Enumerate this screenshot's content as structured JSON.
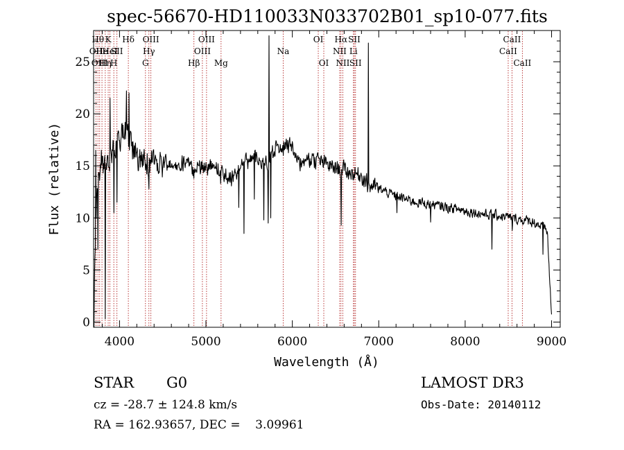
{
  "chart_data": {
    "type": "line",
    "title": "spec-56670-HD110033N033702B01_sp10-077.fits",
    "xlabel": "Wavelength (Å)",
    "ylabel": "Flux (relative)",
    "xlim": [
      3700,
      9100
    ],
    "ylim": [
      -0.5,
      28
    ],
    "x_ticks": [
      4000,
      5000,
      6000,
      7000,
      8000,
      9000
    ],
    "y_ticks": [
      0,
      5,
      10,
      15,
      20,
      25
    ],
    "grid": false,
    "colors": {
      "spectrum": "#000000",
      "line_markers": "#b22222"
    },
    "continuum": [
      [
        3700,
        0.5
      ],
      [
        3720,
        8
      ],
      [
        3750,
        14
      ],
      [
        3800,
        14.5
      ],
      [
        3850,
        15
      ],
      [
        3880,
        16
      ],
      [
        3950,
        16.5
      ],
      [
        4000,
        17
      ],
      [
        4050,
        18.5
      ],
      [
        4100,
        17.5
      ],
      [
        4150,
        16.5
      ],
      [
        4200,
        16
      ],
      [
        4300,
        15.5
      ],
      [
        4400,
        15.3
      ],
      [
        4500,
        15.2
      ],
      [
        4600,
        15.3
      ],
      [
        4700,
        15.3
      ],
      [
        4800,
        15.2
      ],
      [
        4860,
        14.3
      ],
      [
        4900,
        15
      ],
      [
        5000,
        15
      ],
      [
        5100,
        15
      ],
      [
        5200,
        14.2
      ],
      [
        5300,
        13.8
      ],
      [
        5400,
        14.8
      ],
      [
        5500,
        15.5
      ],
      [
        5600,
        15.8
      ],
      [
        5700,
        15.3
      ],
      [
        5800,
        16.5
      ],
      [
        5900,
        17.2
      ],
      [
        6000,
        16.8
      ],
      [
        6100,
        15.2
      ],
      [
        6200,
        15.6
      ],
      [
        6300,
        15.5
      ],
      [
        6400,
        15.1
      ],
      [
        6500,
        14.8
      ],
      [
        6600,
        14.6
      ],
      [
        6700,
        14.3
      ],
      [
        6800,
        14.1
      ],
      [
        6850,
        13.6
      ],
      [
        6900,
        13.2
      ],
      [
        7000,
        12.8
      ],
      [
        7200,
        12.1
      ],
      [
        7400,
        11.6
      ],
      [
        7600,
        11.3
      ],
      [
        7800,
        11.0
      ],
      [
        8000,
        10.7
      ],
      [
        8200,
        10.4
      ],
      [
        8400,
        10.2
      ],
      [
        8600,
        9.9
      ],
      [
        8800,
        9.6
      ],
      [
        8950,
        8.8
      ],
      [
        9000,
        0.5
      ]
    ],
    "noise_amplitude": 1.1,
    "features": [
      [
        3705,
        -0.5
      ],
      [
        3725,
        16.5
      ],
      [
        3752,
        7
      ],
      [
        3790,
        16.5
      ],
      [
        3834,
        0.3
      ],
      [
        3890,
        21.5
      ],
      [
        3935,
        10.5
      ],
      [
        3969,
        11.5
      ],
      [
        4080,
        22.2
      ],
      [
        4110,
        22
      ],
      [
        4340,
        12.8
      ],
      [
        4862,
        13.8
      ],
      [
        5170,
        13.3
      ],
      [
        5380,
        11
      ],
      [
        5440,
        8.5
      ],
      [
        5560,
        11.8
      ],
      [
        5670,
        9.8
      ],
      [
        5720,
        9.5
      ],
      [
        5730,
        27.5
      ],
      [
        5750,
        10
      ],
      [
        5894,
        16
      ],
      [
        6563,
        9.3
      ],
      [
        6870,
        12.5
      ],
      [
        6880,
        26.8
      ],
      [
        6900,
        12.5
      ],
      [
        7210,
        10.5
      ],
      [
        7600,
        9.6
      ],
      [
        8310,
        7
      ],
      [
        8545,
        8.8
      ],
      [
        8900,
        6.5
      ]
    ],
    "emission_lines": [
      {
        "wavelength": 3727,
        "rows": [
          1
        ],
        "label": "OII"
      },
      {
        "wavelength": 3750,
        "rows": [
          0
        ],
        "label": "Hθ"
      },
      {
        "wavelength": 3770,
        "rows": [
          2
        ],
        "label": "OIII"
      },
      {
        "wavelength": 3797,
        "rows": [
          1
        ],
        "label": "He"
      },
      {
        "wavelength": 3835,
        "rows": [
          2
        ],
        "label": "Hη"
      },
      {
        "wavelength": 3869,
        "rows": [
          0
        ],
        "label": "K"
      },
      {
        "wavelength": 3889,
        "rows": [
          1
        ],
        "label": "HeI"
      },
      {
        "wavelength": 3934,
        "rows": [
          2
        ],
        "label": "H"
      },
      {
        "wavelength": 3970,
        "rows": [
          1
        ],
        "label": "SII"
      },
      {
        "wavelength": 4102,
        "rows": [
          0
        ],
        "label": "Hδ"
      },
      {
        "wavelength": 4300,
        "rows": [
          2
        ],
        "label": "G"
      },
      {
        "wavelength": 4340,
        "rows": [
          1
        ],
        "label": "Hγ"
      },
      {
        "wavelength": 4363,
        "rows": [
          0
        ],
        "label": "OIII"
      },
      {
        "wavelength": 4861,
        "rows": [
          2
        ],
        "label": "Hβ"
      },
      {
        "wavelength": 4959,
        "rows": [
          1
        ],
        "label": "OIII"
      },
      {
        "wavelength": 5007,
        "rows": [
          0
        ],
        "label": "OIII"
      },
      {
        "wavelength": 5175,
        "rows": [
          2
        ],
        "label": "Mg"
      },
      {
        "wavelength": 5894,
        "rows": [
          1
        ],
        "label": "Na"
      },
      {
        "wavelength": 6300,
        "rows": [
          0
        ],
        "label": "OI"
      },
      {
        "wavelength": 6364,
        "rows": [
          2
        ],
        "label": "OI"
      },
      {
        "wavelength": 6548,
        "rows": [
          1
        ],
        "label": "NII"
      },
      {
        "wavelength": 6563,
        "rows": [
          0
        ],
        "label": "Hα"
      },
      {
        "wavelength": 6584,
        "rows": [
          2
        ],
        "label": "NII"
      },
      {
        "wavelength": 6707,
        "rows": [
          1
        ],
        "label": "Li"
      },
      {
        "wavelength": 6717,
        "rows": [
          0
        ],
        "label": "SII"
      },
      {
        "wavelength": 6731,
        "rows": [
          2
        ],
        "label": "SII"
      },
      {
        "wavelength": 8498,
        "rows": [
          1
        ],
        "label": "CaII"
      },
      {
        "wavelength": 8542,
        "rows": [
          0
        ],
        "label": "CaII"
      },
      {
        "wavelength": 8662,
        "rows": [
          2
        ],
        "label": "CaII"
      }
    ]
  },
  "footer": {
    "object_class": "STAR",
    "subclass": "G0",
    "survey": "LAMOST DR3",
    "cz_line": "cz = -28.7 ± 124.8 km/s",
    "obs_date": "Obs-Date: 20140112",
    "coords_line": "RA = 162.93657, DEC =    3.09961"
  }
}
